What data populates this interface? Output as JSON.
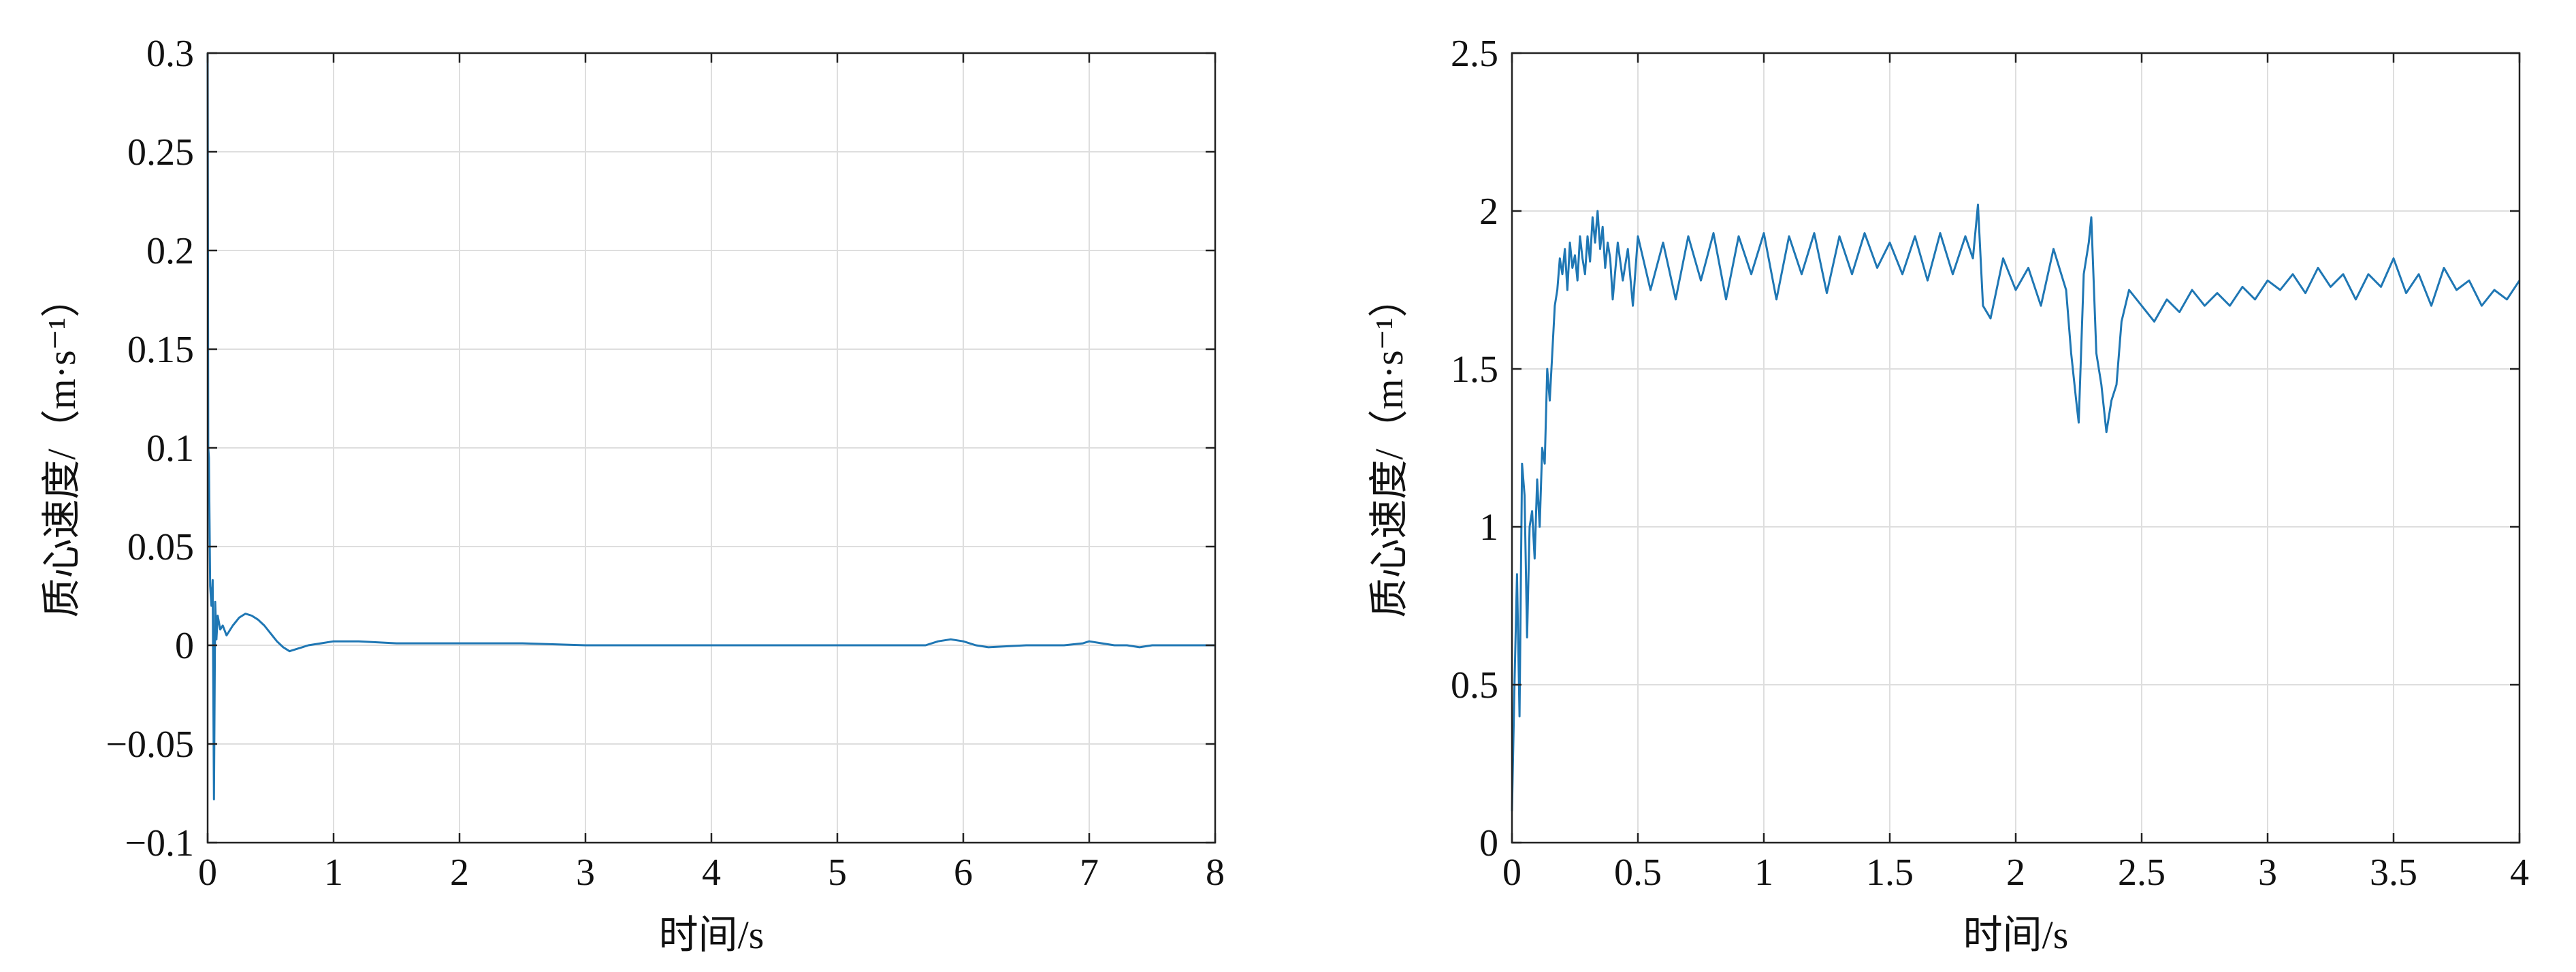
{
  "chart_data": [
    {
      "type": "line",
      "xlabel": "时间/s",
      "ylabel": "质心速度/（m·s⁻¹）",
      "xlim": [
        0,
        8
      ],
      "ylim": [
        -0.1,
        0.3
      ],
      "xticks": [
        0,
        1,
        2,
        3,
        4,
        5,
        6,
        7,
        8
      ],
      "yticks": [
        -0.1,
        -0.05,
        0,
        0.05,
        0.1,
        0.15,
        0.2,
        0.25,
        0.3
      ],
      "xtick_labels": [
        "0",
        "1",
        "2",
        "3",
        "4",
        "5",
        "6",
        "7",
        "8"
      ],
      "ytick_labels": [
        "−0.1",
        "−0.05",
        "0",
        "0.05",
        "0.1",
        "0.15",
        "0.2",
        "0.25",
        "0.3"
      ],
      "grid": true,
      "series": [
        {
          "color": "#1f77b4",
          "x": [
            0,
            0.005,
            0.01,
            0.02,
            0.03,
            0.04,
            0.05,
            0.06,
            0.07,
            0.08,
            0.1,
            0.12,
            0.15,
            0.2,
            0.25,
            0.3,
            0.35,
            0.4,
            0.45,
            0.5,
            0.55,
            0.6,
            0.65,
            0.7,
            0.75,
            0.8,
            0.9,
            1.0,
            1.1,
            1.2,
            1.5,
            2.0,
            2.5,
            3.0,
            3.5,
            4.0,
            4.5,
            5.0,
            5.5,
            5.7,
            5.8,
            5.9,
            6.0,
            6.1,
            6.2,
            6.5,
            6.8,
            6.95,
            7.0,
            7.1,
            7.2,
            7.3,
            7.4,
            7.5,
            7.8,
            8.0
          ],
          "y": [
            0.3,
            0.1,
            0.095,
            0.03,
            0.02,
            0.033,
            -0.078,
            0.022,
            0.003,
            0.015,
            0.008,
            0.01,
            0.005,
            0.01,
            0.014,
            0.016,
            0.015,
            0.013,
            0.01,
            0.006,
            0.002,
            -0.001,
            -0.003,
            -0.002,
            -0.001,
            0.0,
            0.001,
            0.002,
            0.002,
            0.002,
            0.001,
            0.001,
            0.001,
            0.0,
            0.0,
            0.0,
            0.0,
            0.0,
            0.0,
            0.0,
            0.002,
            0.003,
            0.002,
            0.0,
            -0.001,
            0.0,
            0.0,
            0.001,
            0.002,
            0.001,
            0.0,
            0.0,
            -0.001,
            0.0,
            0.0,
            0.0
          ]
        }
      ]
    },
    {
      "type": "line",
      "xlabel": "时间/s",
      "ylabel": "质心速度/（m·s⁻¹）",
      "xlim": [
        0,
        4
      ],
      "ylim": [
        0,
        2.5
      ],
      "xticks": [
        0,
        0.5,
        1,
        1.5,
        2,
        2.5,
        3,
        3.5,
        4
      ],
      "yticks": [
        0,
        0.5,
        1,
        1.5,
        2,
        2.5
      ],
      "xtick_labels": [
        "0",
        "0.5",
        "1",
        "1.5",
        "2",
        "2.5",
        "3",
        "3.5",
        "4"
      ],
      "ytick_labels": [
        "0",
        "0.5",
        "1",
        "1.5",
        "2",
        "2.5"
      ],
      "grid": true,
      "series": [
        {
          "color": "#1f77b4",
          "x": [
            0,
            0.01,
            0.02,
            0.03,
            0.04,
            0.05,
            0.06,
            0.07,
            0.08,
            0.09,
            0.1,
            0.11,
            0.12,
            0.13,
            0.14,
            0.15,
            0.16,
            0.17,
            0.18,
            0.19,
            0.2,
            0.21,
            0.22,
            0.23,
            0.24,
            0.25,
            0.26,
            0.27,
            0.28,
            0.29,
            0.3,
            0.31,
            0.32,
            0.33,
            0.34,
            0.35,
            0.36,
            0.37,
            0.38,
            0.39,
            0.4,
            0.42,
            0.44,
            0.46,
            0.48,
            0.5,
            0.55,
            0.6,
            0.65,
            0.7,
            0.75,
            0.8,
            0.85,
            0.9,
            0.95,
            1.0,
            1.05,
            1.1,
            1.15,
            1.2,
            1.25,
            1.3,
            1.35,
            1.4,
            1.45,
            1.5,
            1.55,
            1.6,
            1.65,
            1.7,
            1.75,
            1.8,
            1.83,
            1.85,
            1.87,
            1.9,
            1.95,
            2.0,
            2.05,
            2.1,
            2.15,
            2.2,
            2.22,
            2.24,
            2.25,
            2.27,
            2.29,
            2.3,
            2.32,
            2.34,
            2.36,
            2.38,
            2.4,
            2.42,
            2.45,
            2.5,
            2.55,
            2.6,
            2.65,
            2.7,
            2.75,
            2.8,
            2.85,
            2.9,
            2.95,
            3.0,
            3.05,
            3.1,
            3.15,
            3.2,
            3.25,
            3.3,
            3.35,
            3.4,
            3.45,
            3.5,
            3.55,
            3.6,
            3.65,
            3.7,
            3.75,
            3.8,
            3.85,
            3.9,
            3.95,
            4.0
          ],
          "y": [
            0.1,
            0.5,
            0.85,
            0.4,
            1.2,
            1.1,
            0.65,
            1.0,
            1.05,
            0.9,
            1.15,
            1.0,
            1.25,
            1.2,
            1.5,
            1.4,
            1.55,
            1.7,
            1.75,
            1.85,
            1.8,
            1.88,
            1.75,
            1.9,
            1.82,
            1.86,
            1.78,
            1.92,
            1.85,
            1.8,
            1.92,
            1.84,
            1.98,
            1.9,
            2.0,
            1.88,
            1.95,
            1.82,
            1.9,
            1.85,
            1.72,
            1.9,
            1.78,
            1.88,
            1.7,
            1.92,
            1.75,
            1.9,
            1.72,
            1.92,
            1.78,
            1.93,
            1.72,
            1.92,
            1.8,
            1.93,
            1.72,
            1.92,
            1.8,
            1.93,
            1.74,
            1.92,
            1.8,
            1.93,
            1.82,
            1.9,
            1.8,
            1.92,
            1.78,
            1.93,
            1.8,
            1.92,
            1.85,
            2.02,
            1.7,
            1.66,
            1.85,
            1.75,
            1.82,
            1.7,
            1.88,
            1.75,
            1.55,
            1.4,
            1.33,
            1.8,
            1.9,
            1.98,
            1.55,
            1.45,
            1.3,
            1.4,
            1.45,
            1.65,
            1.75,
            1.7,
            1.65,
            1.72,
            1.68,
            1.75,
            1.7,
            1.74,
            1.7,
            1.76,
            1.72,
            1.78,
            1.75,
            1.8,
            1.74,
            1.82,
            1.76,
            1.8,
            1.72,
            1.8,
            1.76,
            1.85,
            1.74,
            1.8,
            1.7,
            1.82,
            1.75,
            1.78,
            1.7,
            1.75,
            1.72,
            1.78
          ]
        }
      ]
    }
  ]
}
